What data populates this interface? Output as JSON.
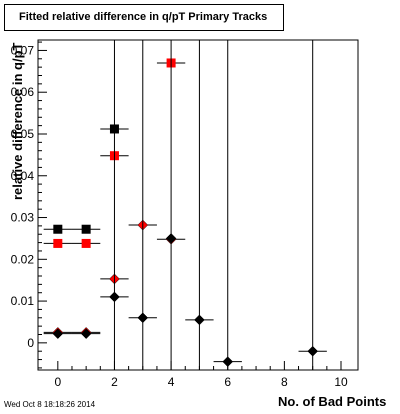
{
  "chart_data": {
    "type": "scatter",
    "title": "Fitted relative difference in q/pT Primary Tracks",
    "xlabel": "No. of Bad Points",
    "ylabel": "relative difference in q/pT",
    "xlim": [
      -0.7,
      10.6
    ],
    "ylim": [
      -0.0065,
      0.0725
    ],
    "x_ticks": [
      0,
      2,
      4,
      6,
      8,
      10
    ],
    "y_ticks": [
      0,
      0.01,
      0.02,
      0.03,
      0.04,
      0.05,
      0.06,
      0.07
    ],
    "y_tick_labels": [
      "0",
      "0.01",
      "0.02",
      "0.03",
      "0.04",
      "0.05",
      "0.06",
      "0.07"
    ],
    "x_tick_labels": [
      "0",
      "2",
      "4",
      "6",
      "8",
      "10"
    ],
    "grid": false,
    "series": [
      {
        "marker": "square",
        "color": "#000000",
        "points": [
          {
            "x": 0,
            "y": 0.0272,
            "xerr": 0.5,
            "yerr": 0
          },
          {
            "x": 1,
            "y": 0.0272,
            "xerr": 0.5,
            "yerr": 0
          },
          {
            "x": 2,
            "y": 0.0512,
            "xerr": 0.5,
            "yerr": 0
          }
        ]
      },
      {
        "marker": "square",
        "color": "#ff0000",
        "points": [
          {
            "x": 0,
            "y": 0.0238,
            "xerr": 0.5,
            "yerr": 0
          },
          {
            "x": 1,
            "y": 0.0238,
            "xerr": 0.5,
            "yerr": 0
          },
          {
            "x": 2,
            "y": 0.0448,
            "xerr": 0.5,
            "yerr": 0
          },
          {
            "x": 4,
            "y": 0.067,
            "xerr": 0.5,
            "yerr": 0
          }
        ]
      },
      {
        "marker": "diamond",
        "color": "#ff0000",
        "points": [
          {
            "x": 0,
            "y": 0.0025,
            "xerr": 0.5,
            "yerr": 0
          },
          {
            "x": 1,
            "y": 0.0025,
            "xerr": 0.5,
            "yerr": 0
          },
          {
            "x": 2,
            "y": 0.0153,
            "xerr": 0.5,
            "yerr": 0
          },
          {
            "x": 3,
            "y": 0.0282,
            "xerr": 0.5,
            "yerr": 0
          },
          {
            "x": 4,
            "y": 0.0248,
            "xerr": 0.5,
            "yerr": 0
          }
        ]
      },
      {
        "marker": "diamond",
        "color": "#000000",
        "points": [
          {
            "x": 0,
            "y": 0.0022,
            "xerr": 0.5,
            "yerr": 0
          },
          {
            "x": 1,
            "y": 0.0022,
            "xerr": 0.5,
            "yerr": 0
          },
          {
            "x": 2,
            "y": 0.011,
            "xerr": 0.5,
            "yerr": 0.09
          },
          {
            "x": 3,
            "y": 0.006,
            "xerr": 0.5,
            "yerr": 0.09
          },
          {
            "x": 4,
            "y": 0.025,
            "xerr": 0,
            "yerr": 0.09
          },
          {
            "x": 5,
            "y": 0.0055,
            "xerr": 0.5,
            "yerr": 0.09
          },
          {
            "x": 6,
            "y": -0.0045,
            "xerr": 0.5,
            "yerr": 0.09
          },
          {
            "x": 9,
            "y": -0.002,
            "xerr": 0.5,
            "yerr": 0.09
          }
        ]
      }
    ]
  },
  "footer": {
    "datetime": "Wed Oct  8 18:18:26 2014"
  }
}
